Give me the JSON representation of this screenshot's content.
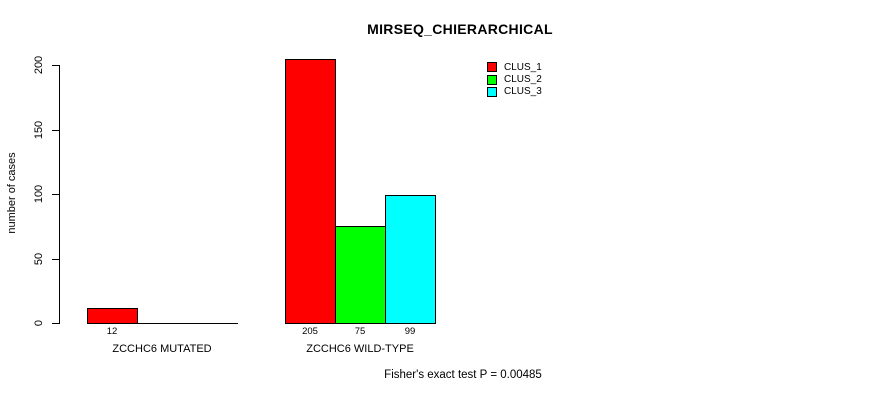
{
  "title": "MIRSEQ_CHIERARCHICAL",
  "y_axis": {
    "label": "number of cases",
    "ticks": [
      0,
      50,
      100,
      150,
      200
    ]
  },
  "legend": {
    "items": [
      {
        "label": "CLUS_1",
        "color": "#ff0000"
      },
      {
        "label": "CLUS_2",
        "color": "#00ff00"
      },
      {
        "label": "CLUS_3",
        "color": "#00ffff"
      }
    ]
  },
  "footer": "Fisher's exact test P = 0.00485",
  "chart_data": {
    "type": "bar",
    "title": "MIRSEQ_CHIERARCHICAL",
    "categories": [
      "ZCCHC6 MUTATED",
      "ZCCHC6 WILD-TYPE"
    ],
    "series": [
      {
        "name": "CLUS_1",
        "color": "#ff0000",
        "values": [
          12,
          205
        ]
      },
      {
        "name": "CLUS_2",
        "color": "#00ff00",
        "values": [
          0,
          75
        ]
      },
      {
        "name": "CLUS_3",
        "color": "#00ffff",
        "values": [
          0,
          99
        ]
      }
    ],
    "bar_value_labels": [
      [
        "12",
        null,
        null
      ],
      [
        "205",
        "75",
        "99"
      ]
    ],
    "xlabel": "",
    "ylabel": "number of cases",
    "ylim": [
      0,
      205
    ],
    "yticks": [
      0,
      50,
      100,
      150,
      200
    ],
    "grid": false,
    "legend_position": "top-right-inside",
    "annotation": "Fisher's exact test P = 0.00485"
  }
}
